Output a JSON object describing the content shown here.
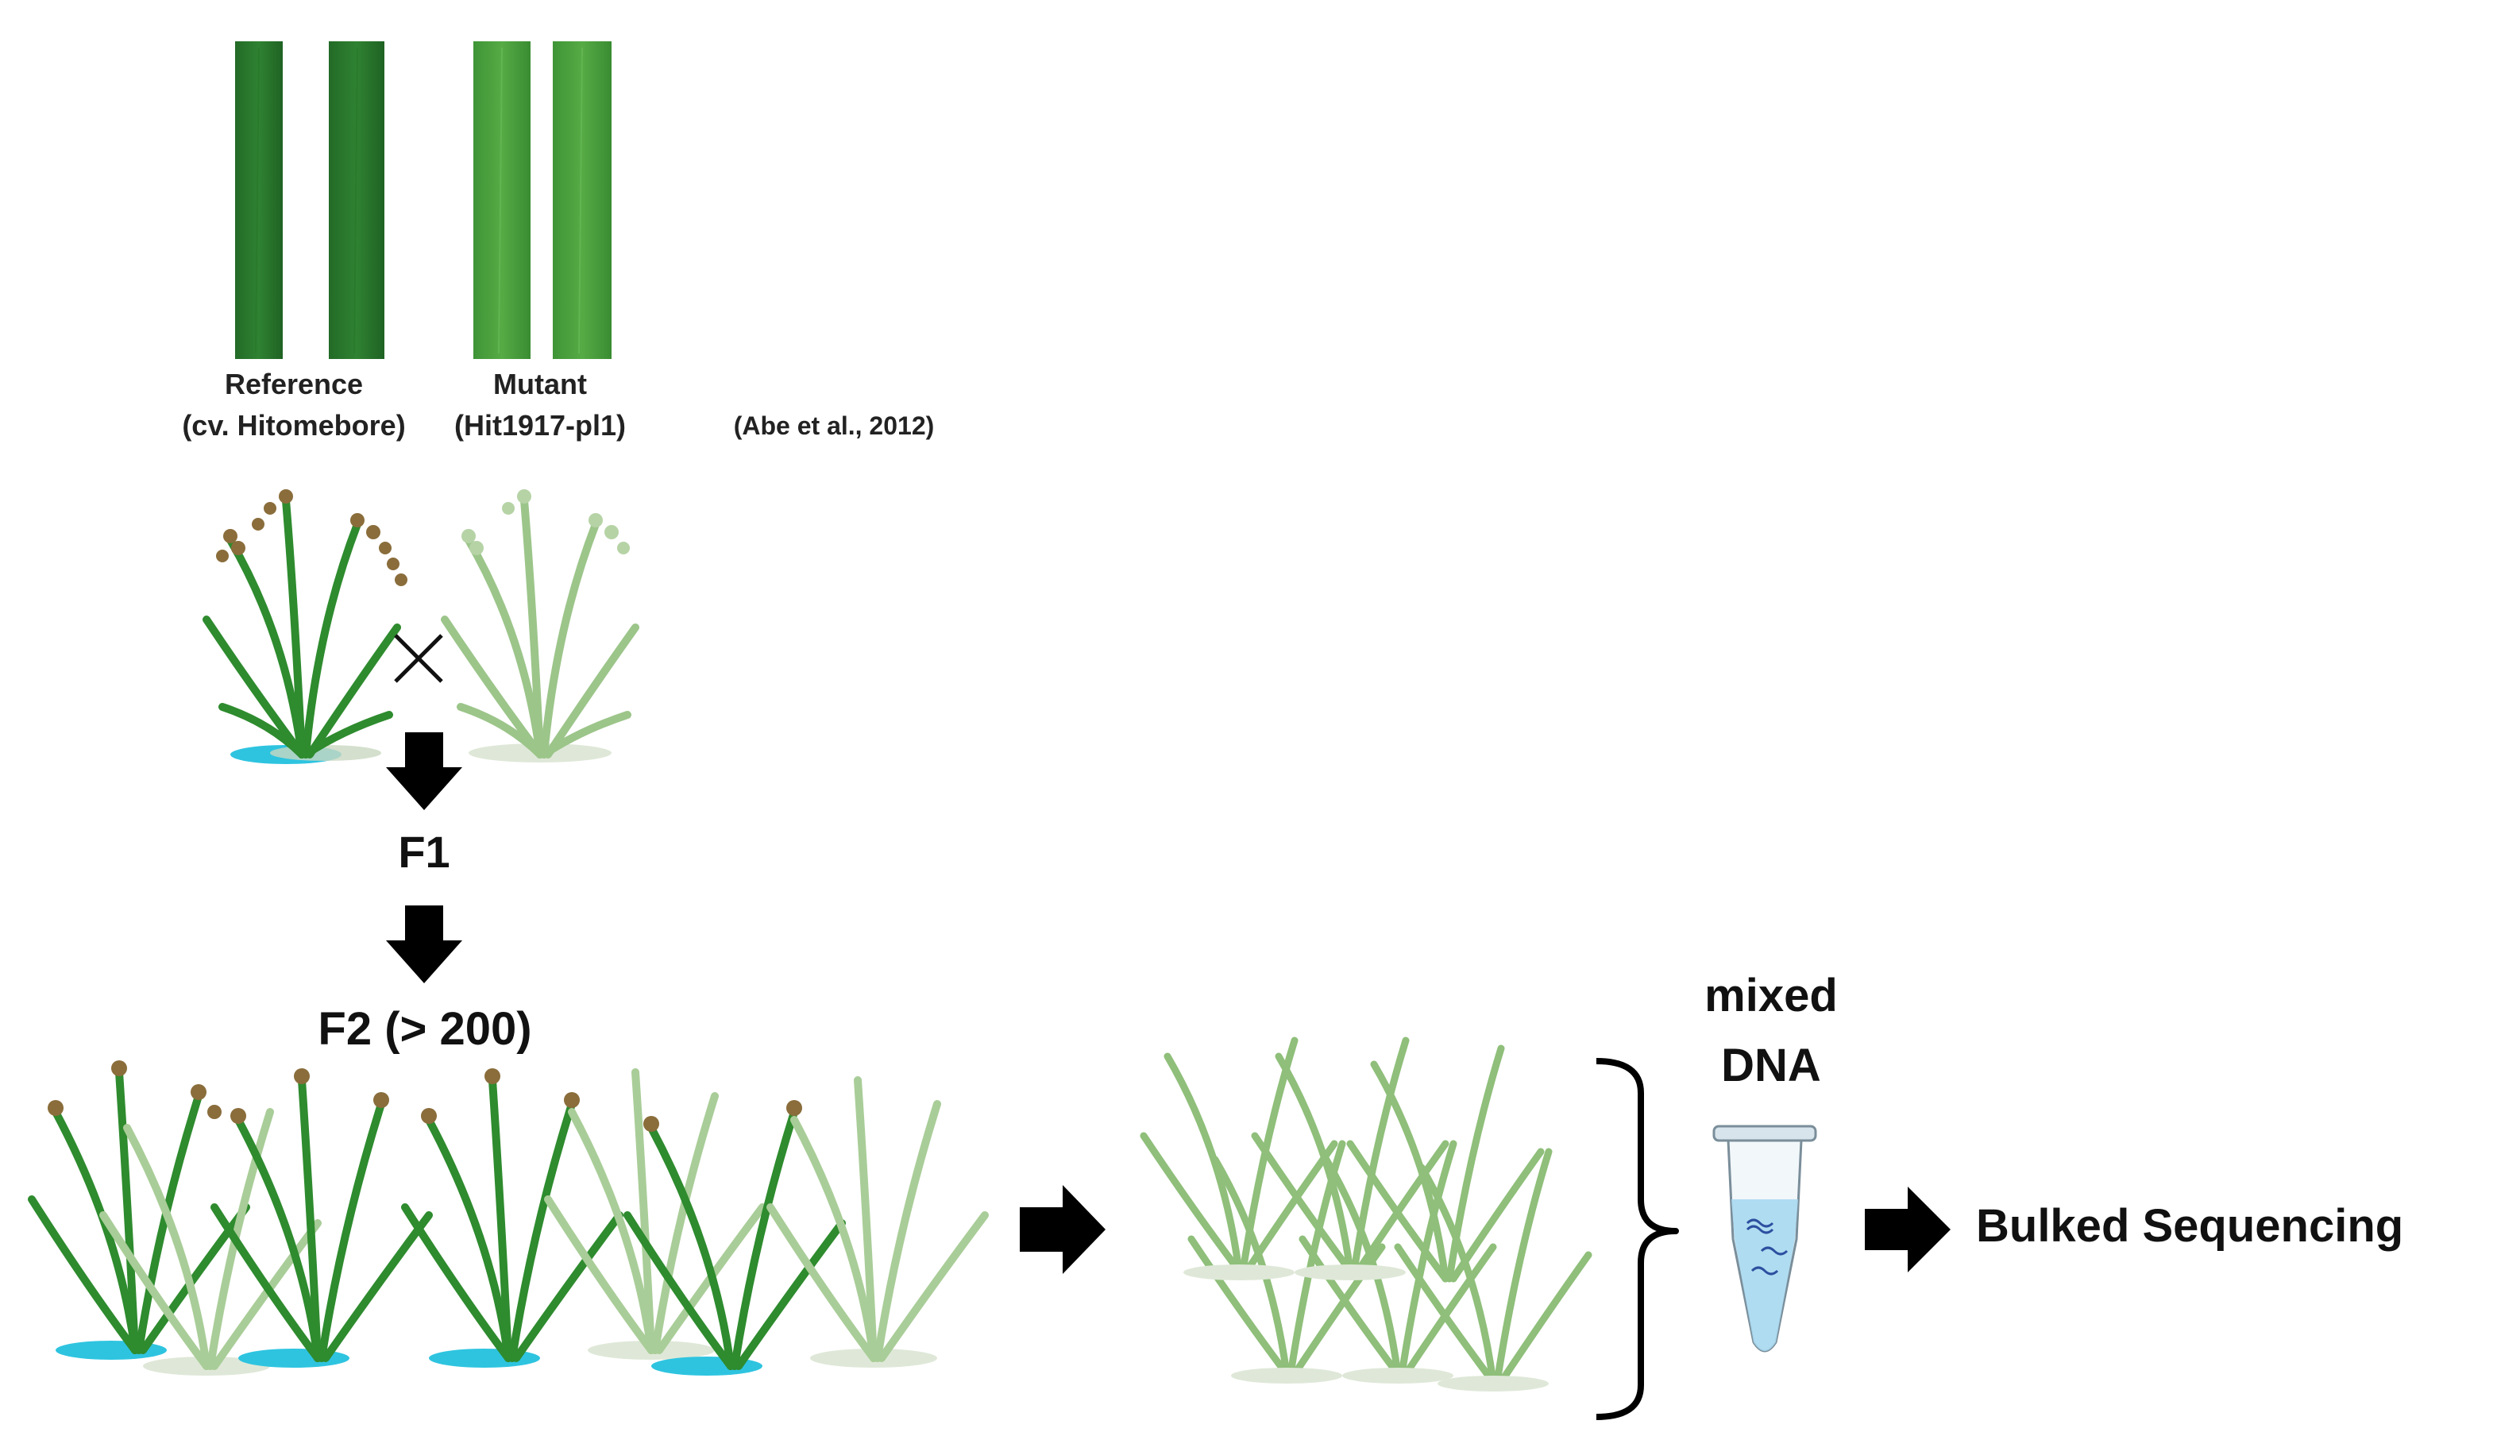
{
  "leaf_panel": {
    "reference_label": "Reference",
    "reference_cultivar": "(cv. Hitomebore)",
    "mutant_label": "Mutant",
    "mutant_line": "(Hit1917-pl1)",
    "citation": "(Abe et al., 2012)",
    "reference_color": "#2d7a2f",
    "mutant_color": "#4a9e3c"
  },
  "cross": {
    "symbol": "×",
    "f1_label": "F1",
    "f2_label": "F2 (> 200)"
  },
  "bulk": {
    "tube_label_line1": "mixed",
    "tube_label_line2": "DNA",
    "result_label": "Bulked Sequencing"
  },
  "colors": {
    "dark_plant": "#2e8b2e",
    "pale_plant": "#9cc58a",
    "panicle": "#8a6d3b",
    "water": "#2ec4e0",
    "arrow": "#000000",
    "tube_liquid": "#a8d8f0"
  },
  "icons": [
    "leaf-blade-icon",
    "rice-plant-icon",
    "cross-icon",
    "down-arrow-icon",
    "right-arrow-icon",
    "brace-icon",
    "microtube-icon",
    "dna-icon"
  ]
}
